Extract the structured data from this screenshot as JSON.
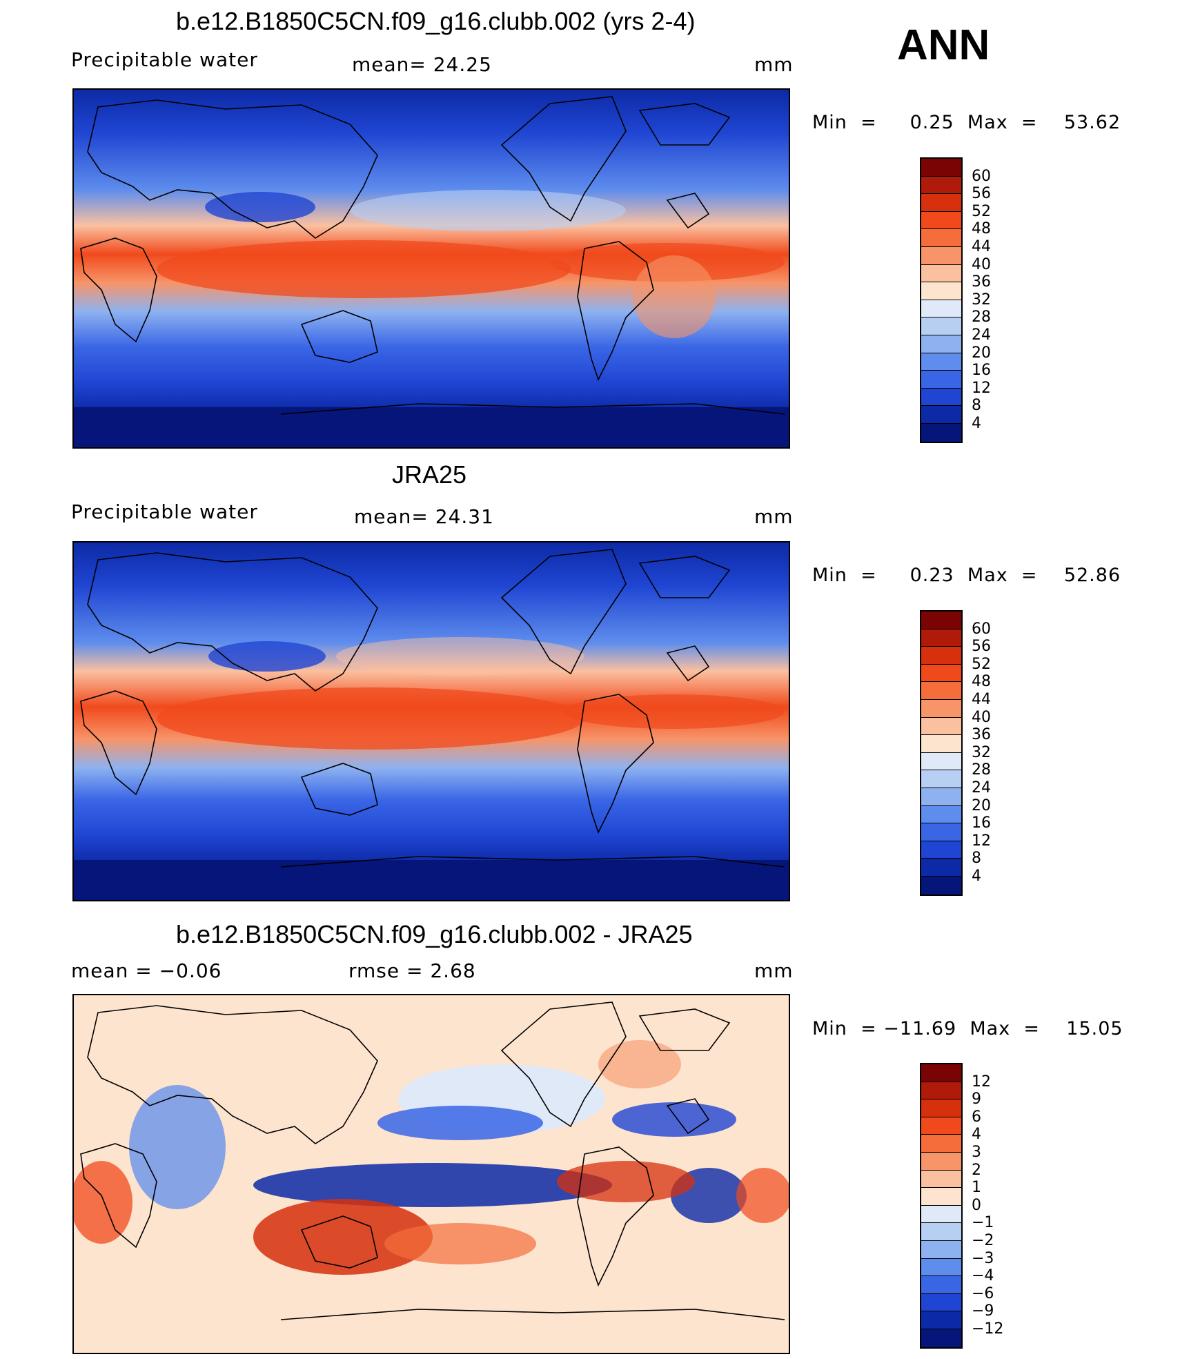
{
  "season": "ANN",
  "panels": [
    {
      "title": "b.e12.B1850C5CN.f09_g16.clubb.002 (yrs 2-4)",
      "left_label": "Precipitable  water",
      "center_label": "mean=   24.25",
      "units": "mm",
      "minmax": "Min  =     0.25  Max  =    53.62",
      "colorbar_labels": [
        "60",
        "56",
        "52",
        "48",
        "44",
        "40",
        "36",
        "32",
        "28",
        "24",
        "20",
        "16",
        "12",
        "8",
        "4"
      ]
    },
    {
      "title": "JRA25",
      "left_label": "Precipitable  water",
      "center_label": "mean=   24.31",
      "units": "mm",
      "minmax": "Min  =     0.23  Max  =    52.86",
      "colorbar_labels": [
        "60",
        "56",
        "52",
        "48",
        "44",
        "40",
        "36",
        "32",
        "28",
        "24",
        "20",
        "16",
        "12",
        "8",
        "4"
      ]
    },
    {
      "title": "b.e12.B1850C5CN.f09_g16.clubb.002 - JRA25",
      "left_label": "mean  =    −0.06",
      "center_label": "rmse  =     2.68",
      "units": "mm",
      "minmax": "Min  = −11.69  Max  =    15.05",
      "colorbar_labels": [
        "12",
        "9",
        "6",
        "4",
        "3",
        "2",
        "1",
        "0",
        "−1",
        "−2",
        "−3",
        "−4",
        "−6",
        "−9",
        "−12"
      ]
    }
  ],
  "colors": {
    "abs_scale": [
      "#7a0403",
      "#b01a0a",
      "#d6300c",
      "#f04a1c",
      "#f46d3a",
      "#f79468",
      "#fbc0a0",
      "#fde4cf",
      "#dfe9f7",
      "#b7cff3",
      "#8eb2f0",
      "#5e8ded",
      "#3a66e6",
      "#1f45d2",
      "#0d2aa6",
      "#06157a"
    ],
    "diff_scale": [
      "#7a0403",
      "#b01a0a",
      "#d6300c",
      "#f04a1c",
      "#f46d3a",
      "#f79468",
      "#fbc0a0",
      "#fde4cf",
      "#dfe9f7",
      "#b7cff3",
      "#8eb2f0",
      "#5e8ded",
      "#3a66e6",
      "#1f45d2",
      "#0d2aa6",
      "#06157a"
    ]
  }
}
